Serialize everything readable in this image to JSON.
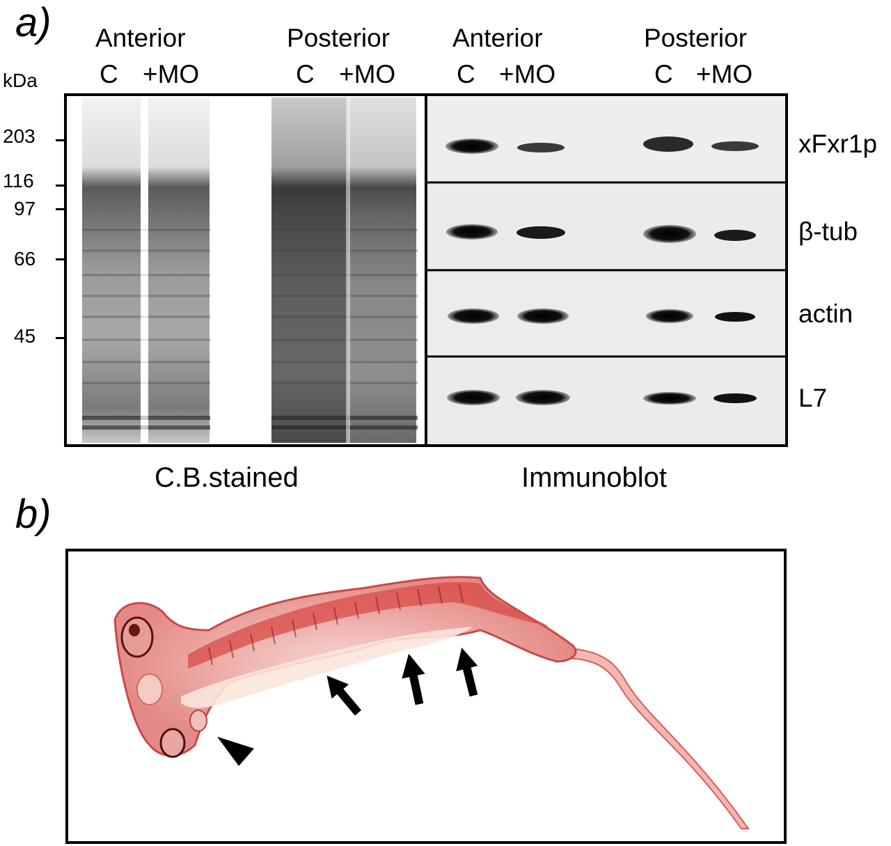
{
  "panel_a": {
    "letter": "a)",
    "kda_label": "kDa",
    "group_headers": [
      "Anterior",
      "Posterior",
      "Anterior",
      "Posterior"
    ],
    "lane_labels": [
      "C",
      "+MO",
      "C",
      "+MO",
      "C",
      "+MO",
      "C",
      "+MO"
    ],
    "mw_markers": [
      "203",
      "116",
      "97",
      "66",
      "45"
    ],
    "blot_labels": [
      "xFxr1p",
      "β-tub",
      "actin",
      "L7"
    ],
    "captions": {
      "left": "C.B.stained",
      "right": "Immunoblot"
    }
  },
  "panel_b": {
    "letter": "b)"
  }
}
